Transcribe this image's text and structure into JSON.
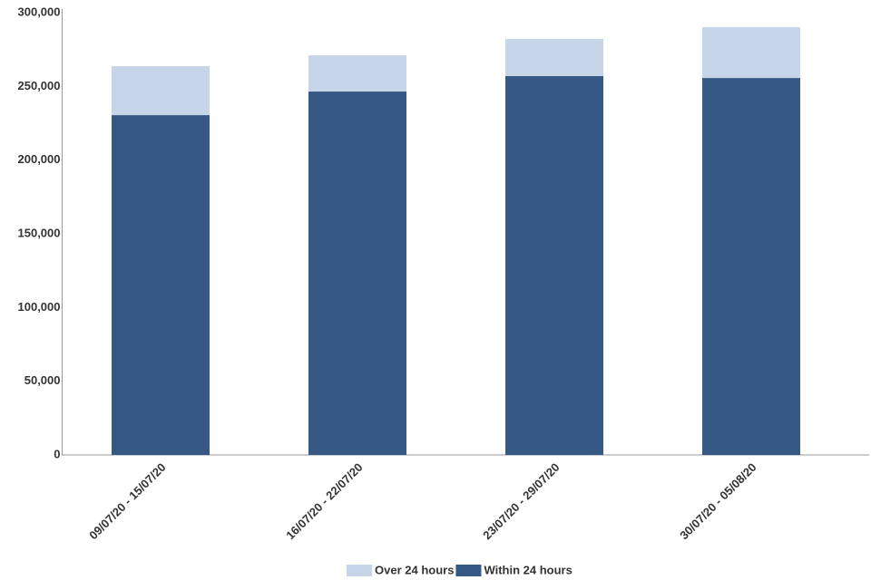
{
  "chart_data": {
    "type": "stacked_bar",
    "categories": [
      "09/07/20 - 15/07/20",
      "16/07/20 - 22/07/20",
      "23/07/20 - 29/07/20",
      "30/07/20 - 05/08/20"
    ],
    "series": [
      {
        "name": "Within 24 hours",
        "color": "#365885",
        "values": [
          230500,
          246500,
          257000,
          255700
        ]
      },
      {
        "name": "Over 24 hours",
        "color": "#c6d5e8",
        "values": [
          33200,
          24600,
          25200,
          34500
        ]
      }
    ],
    "ylim": [
      0,
      300000
    ],
    "yticks": [
      0,
      {
        "value": 50000,
        "label": "50,000"
      },
      {
        "value": 100000,
        "label": "100,000"
      },
      {
        "value": 150000,
        "label": "150,000"
      },
      {
        "value": 200000,
        "label": "200,000"
      },
      {
        "value": 250000,
        "label": "250,000"
      },
      {
        "value": 300000,
        "label": "300,000"
      }
    ],
    "grid": false,
    "legend": "bottom"
  }
}
